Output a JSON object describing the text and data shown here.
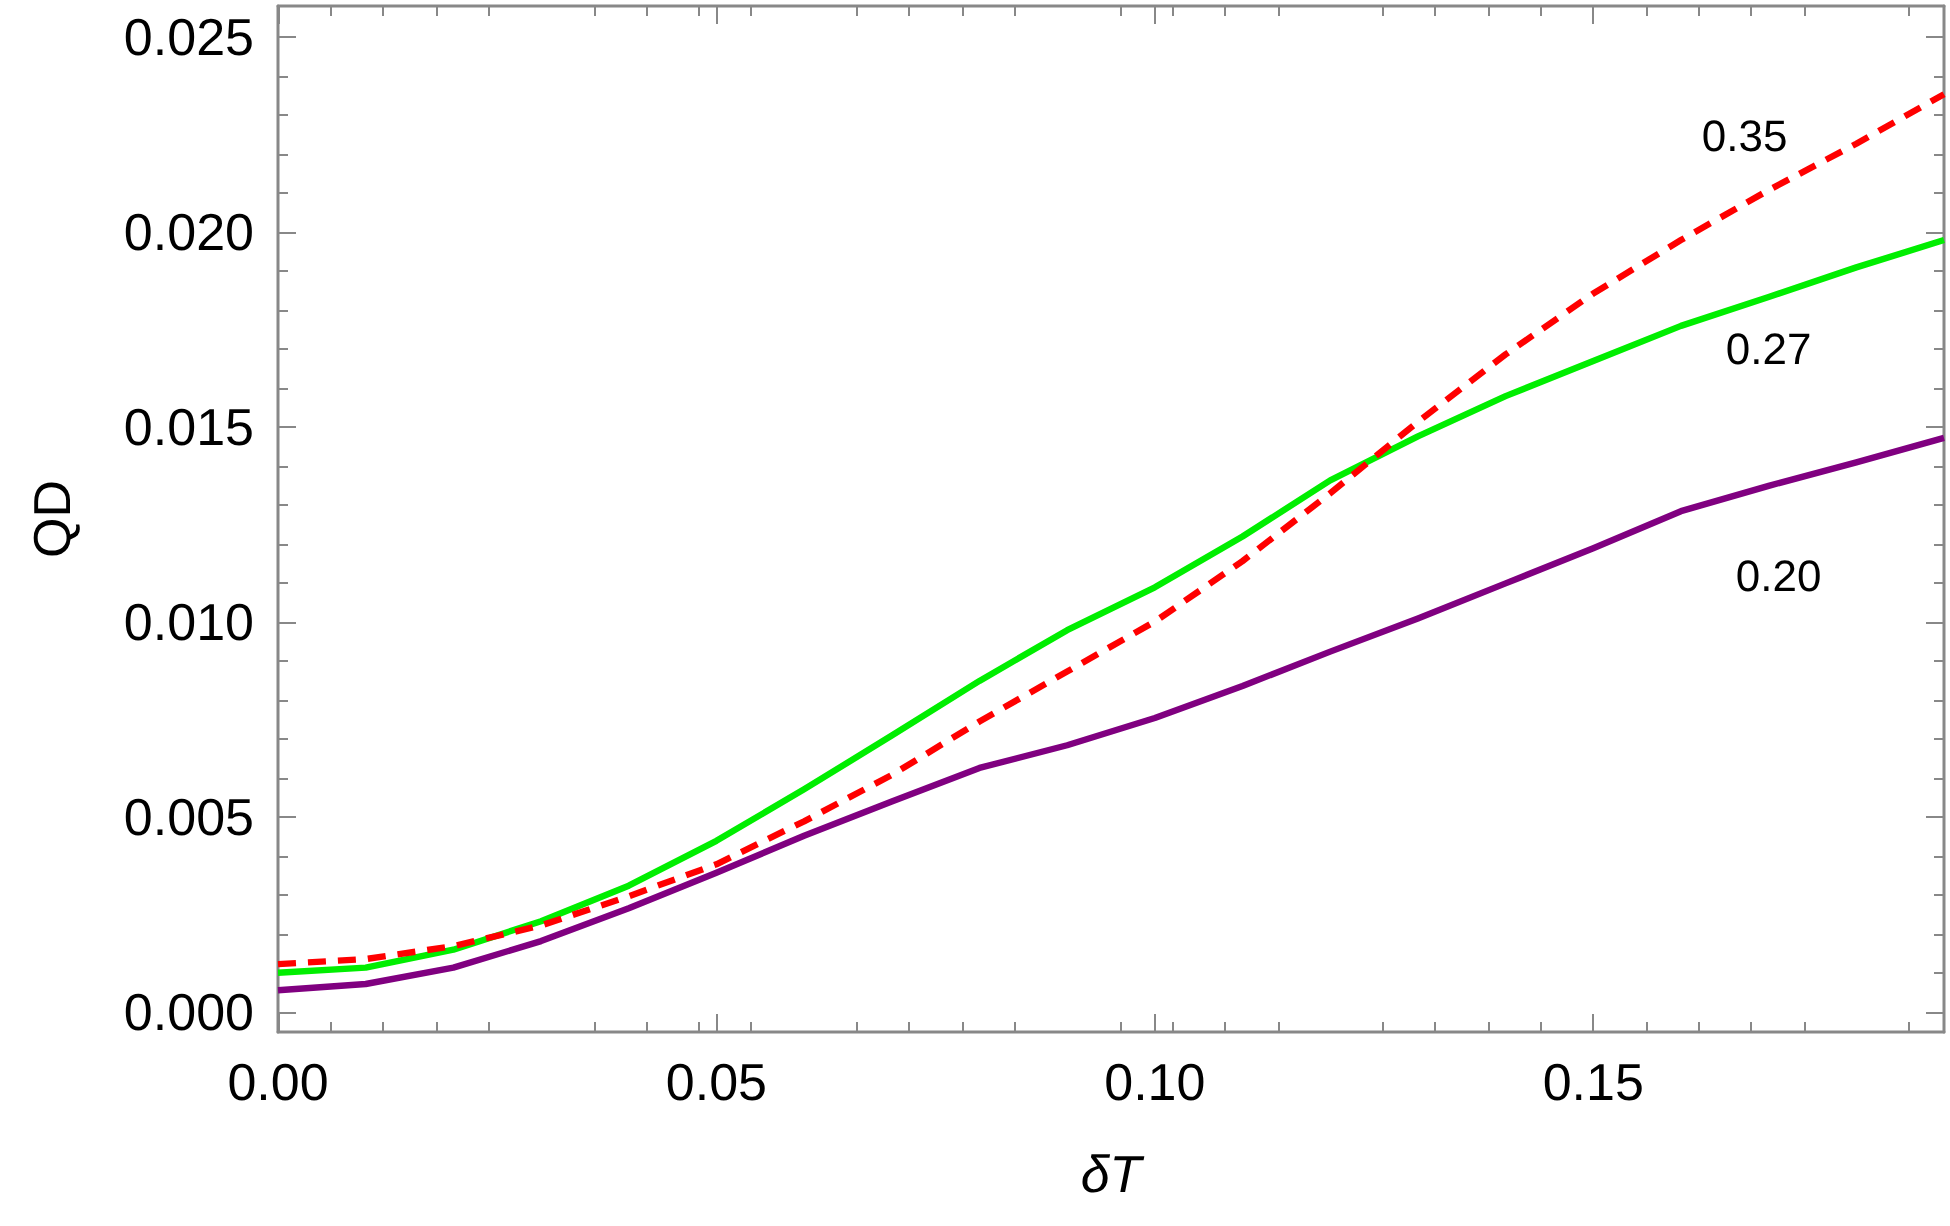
{
  "chart_data": {
    "type": "line",
    "xlabel": "δT",
    "ylabel": "QD",
    "xlim": [
      0,
      0.19
    ],
    "ylim": [
      -0.0005,
      0.0258
    ],
    "xticks": [
      {
        "value": 0,
        "label": "0.00"
      },
      0.05,
      {
        "value": 0.1,
        "label": "0.10"
      },
      0.15
    ],
    "yticks": [
      {
        "value": 0,
        "label": "0.000"
      },
      0.005,
      {
        "value": 0.01,
        "label": "0.010"
      },
      0.015,
      {
        "value": 0.02,
        "label": "0.020"
      },
      0.025
    ],
    "grid": false,
    "marker": "none",
    "x": [
      0,
      0.01,
      0.02,
      0.03,
      0.04,
      0.05,
      0.06,
      0.07,
      0.08,
      0.09,
      0.1,
      0.11,
      0.12,
      0.13,
      0.14,
      0.15,
      0.16,
      0.17,
      0.18,
      0.19
    ],
    "series": [
      {
        "name": "0.20",
        "color": "#800080",
        "line_style": "solid",
        "values": [
          0.00057,
          0.00073,
          0.00115,
          0.00183,
          0.00267,
          0.00358,
          0.00453,
          0.00541,
          0.00627,
          0.00685,
          0.00755,
          0.00837,
          0.00925,
          0.0101,
          0.011,
          0.0119,
          0.01285,
          0.0135,
          0.0141,
          0.01473
        ]
      },
      {
        "name": "0.27",
        "color": "#00ee00",
        "line_style": "solid",
        "values": [
          0.00102,
          0.00115,
          0.00161,
          0.00234,
          0.00325,
          0.0044,
          0.00572,
          0.0071,
          0.0085,
          0.0098,
          0.0109,
          0.0122,
          0.01364,
          0.01477,
          0.0158,
          0.0167,
          0.0176,
          0.01834,
          0.0191,
          0.0198
        ]
      },
      {
        "name": "0.35",
        "color": "#ff0000",
        "line_style": "dashed",
        "values": [
          0.00124,
          0.00137,
          0.0017,
          0.00223,
          0.00298,
          0.0038,
          0.0049,
          0.00609,
          0.00746,
          0.00874,
          0.01002,
          0.01157,
          0.01331,
          0.01514,
          0.01687,
          0.01843,
          0.0198,
          0.02108,
          0.02227,
          0.02354
        ]
      }
    ]
  }
}
